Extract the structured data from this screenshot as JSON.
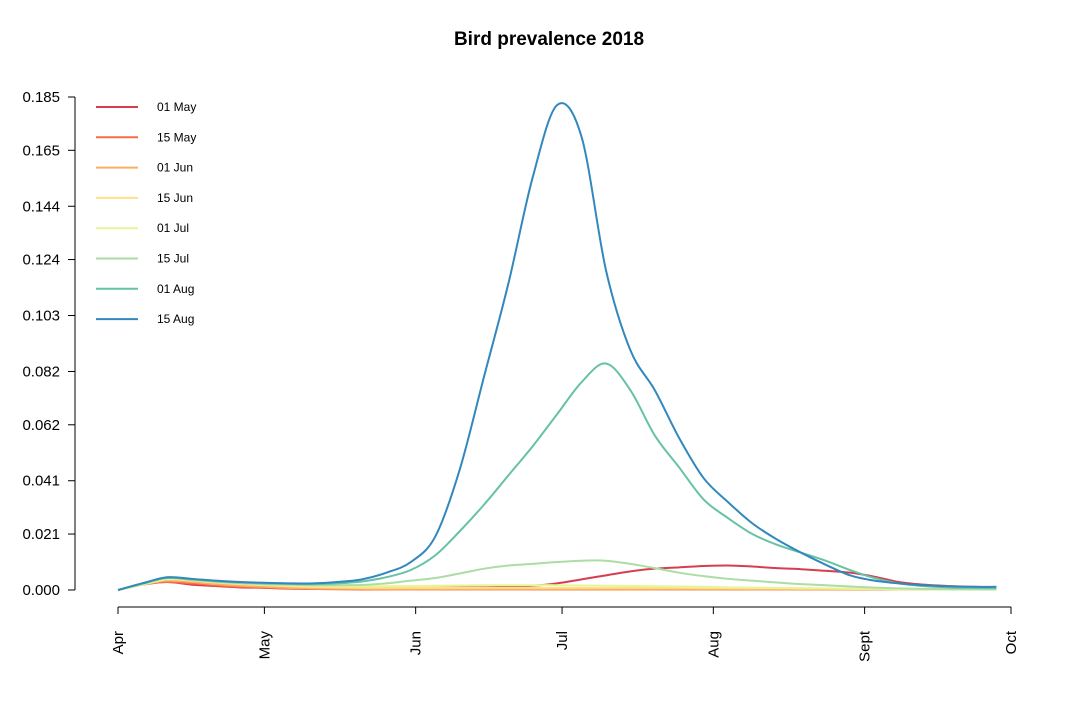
{
  "chart_data": {
    "type": "line",
    "title": "Bird prevalence 2018",
    "xlabel": "",
    "ylabel": "",
    "x_ticks": [
      "Apr",
      "May",
      "Jun",
      "Jul",
      "Aug",
      "Sept",
      "Oct"
    ],
    "y_ticks": [
      "0.000",
      "0.021",
      "0.041",
      "0.062",
      "0.082",
      "0.103",
      "0.124",
      "0.144",
      "0.165",
      "0.185"
    ],
    "ylim": [
      0,
      0.185
    ],
    "xlim": [
      "2018-04-01",
      "2018-10-01"
    ],
    "legend_position": "top-left",
    "grid": false,
    "x": [
      "2018-04-01",
      "2018-04-06",
      "2018-04-11",
      "2018-04-16",
      "2018-04-21",
      "2018-04-26",
      "2018-05-01",
      "2018-05-06",
      "2018-05-11",
      "2018-05-16",
      "2018-05-21",
      "2018-05-26",
      "2018-05-31",
      "2018-06-05",
      "2018-06-10",
      "2018-06-15",
      "2018-06-20",
      "2018-06-25",
      "2018-06-30",
      "2018-07-05",
      "2018-07-10",
      "2018-07-15",
      "2018-07-20",
      "2018-07-25",
      "2018-07-30",
      "2018-08-04",
      "2018-08-09",
      "2018-08-14",
      "2018-08-19",
      "2018-08-24",
      "2018-08-29",
      "2018-09-03",
      "2018-09-08",
      "2018-09-13",
      "2018-09-18",
      "2018-09-23",
      "2018-09-28"
    ],
    "series": [
      {
        "name": "01 May",
        "color": "#d53e4f",
        "values": [
          0.0,
          0.002,
          0.003,
          0.002,
          0.0015,
          0.001,
          0.0008,
          0.0005,
          0.0004,
          0.0004,
          0.0005,
          0.0006,
          0.0007,
          0.0008,
          0.0009,
          0.001,
          0.0012,
          0.0016,
          0.0025,
          0.004,
          0.0055,
          0.007,
          0.008,
          0.0085,
          0.009,
          0.0092,
          0.0088,
          0.0082,
          0.0078,
          0.0072,
          0.0065,
          0.005,
          0.003,
          0.002,
          0.0015,
          0.0012,
          0.001
        ]
      },
      {
        "name": "15 May",
        "color": "#f46d43",
        "values": [
          0.0,
          0.002,
          0.003,
          0.0025,
          0.0018,
          0.0012,
          0.0009,
          0.0006,
          0.0004,
          0.0003,
          0.0002,
          0.0002,
          0.0002,
          0.0002,
          0.0002,
          0.0002,
          0.0002,
          0.0002,
          0.0002,
          0.0002,
          0.0002,
          0.0002,
          0.0002,
          0.0002,
          0.0002,
          0.0002,
          0.0002,
          0.0002,
          0.0002,
          0.0002,
          0.0002,
          0.0002,
          0.0002,
          0.0002,
          0.0002,
          0.0002,
          0.0002
        ]
      },
      {
        "name": "01 Jun",
        "color": "#fdae61",
        "values": [
          0.0,
          0.002,
          0.0035,
          0.003,
          0.0022,
          0.0016,
          0.0012,
          0.0008,
          0.0006,
          0.0005,
          0.0004,
          0.0003,
          0.0003,
          0.0003,
          0.0003,
          0.0003,
          0.0003,
          0.0003,
          0.0003,
          0.0003,
          0.0003,
          0.0003,
          0.0003,
          0.0003,
          0.0003,
          0.0003,
          0.0003,
          0.0003,
          0.0003,
          0.0003,
          0.0003,
          0.0003,
          0.0003,
          0.0003,
          0.0003,
          0.0003,
          0.0003
        ]
      },
      {
        "name": "15 Jun",
        "color": "#fee08b",
        "values": [
          0.0,
          0.002,
          0.004,
          0.0035,
          0.0028,
          0.0022,
          0.0018,
          0.0014,
          0.0011,
          0.0009,
          0.0008,
          0.0008,
          0.0008,
          0.0008,
          0.0008,
          0.0008,
          0.0008,
          0.0008,
          0.0008,
          0.0008,
          0.0008,
          0.0008,
          0.0008,
          0.0008,
          0.0007,
          0.0007,
          0.0006,
          0.0006,
          0.0005,
          0.0005,
          0.0004,
          0.0004,
          0.0003,
          0.0003,
          0.0003,
          0.0003,
          0.0003
        ]
      },
      {
        "name": "01 Jul",
        "color": "#e6f598",
        "values": [
          0.0,
          0.002,
          0.004,
          0.0038,
          0.003,
          0.0025,
          0.0021,
          0.0018,
          0.0016,
          0.0015,
          0.0014,
          0.0014,
          0.0015,
          0.0016,
          0.0017,
          0.0018,
          0.0018,
          0.0018,
          0.0018,
          0.0017,
          0.0016,
          0.0015,
          0.0014,
          0.0013,
          0.0012,
          0.001,
          0.0009,
          0.0008,
          0.0007,
          0.0006,
          0.0005,
          0.0004,
          0.0003,
          0.0003,
          0.0002,
          0.0002,
          0.0002
        ]
      },
      {
        "name": "15 Jul",
        "color": "#abdda4",
        "values": [
          0.0,
          0.0022,
          0.0045,
          0.0038,
          0.0031,
          0.0026,
          0.0022,
          0.002,
          0.0018,
          0.0018,
          0.0019,
          0.0025,
          0.0035,
          0.0045,
          0.0062,
          0.008,
          0.0092,
          0.0098,
          0.0105,
          0.011,
          0.011,
          0.0098,
          0.0082,
          0.0065,
          0.0052,
          0.0042,
          0.0035,
          0.0028,
          0.0022,
          0.0018,
          0.0013,
          0.0009,
          0.0006,
          0.0004,
          0.0003,
          0.0002,
          0.0002
        ]
      },
      {
        "name": "01 Aug",
        "color": "#66c2a5",
        "values": [
          0.0,
          0.0025,
          0.0045,
          0.004,
          0.0033,
          0.0028,
          0.0025,
          0.0023,
          0.0022,
          0.0025,
          0.0032,
          0.0048,
          0.0075,
          0.013,
          0.022,
          0.032,
          0.043,
          0.054,
          0.066,
          0.078,
          0.085,
          0.075,
          0.058,
          0.046,
          0.034,
          0.027,
          0.021,
          0.017,
          0.014,
          0.011,
          0.0075,
          0.0045,
          0.0025,
          0.0015,
          0.001,
          0.0008,
          0.0007
        ]
      },
      {
        "name": "15 Aug",
        "color": "#3288bd",
        "values": [
          0.0,
          0.0025,
          0.0048,
          0.0042,
          0.0035,
          0.003,
          0.0027,
          0.0025,
          0.0025,
          0.003,
          0.004,
          0.0065,
          0.0105,
          0.02,
          0.045,
          0.08,
          0.115,
          0.155,
          0.182,
          0.17,
          0.12,
          0.09,
          0.075,
          0.057,
          0.042,
          0.033,
          0.025,
          0.019,
          0.014,
          0.0095,
          0.0055,
          0.0035,
          0.0025,
          0.0018,
          0.0014,
          0.0012,
          0.0012
        ]
      }
    ]
  }
}
